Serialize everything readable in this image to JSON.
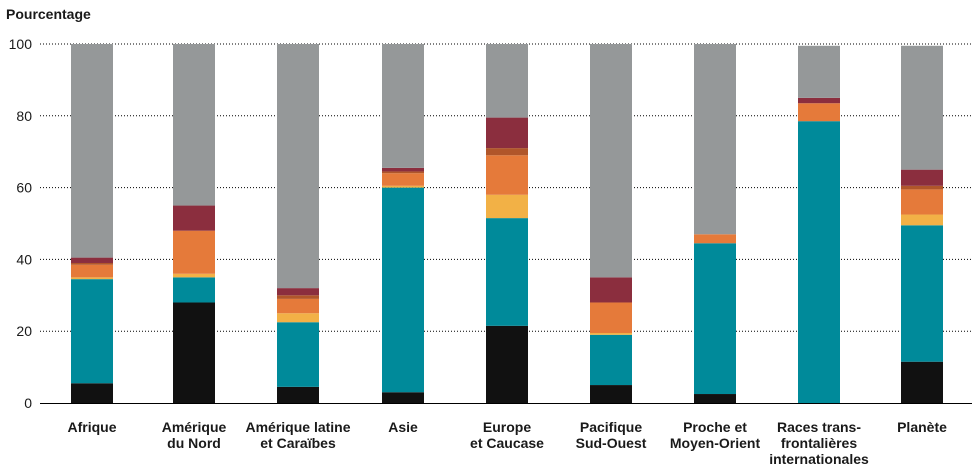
{
  "chart_data": {
    "type": "bar",
    "stacked": true,
    "ylabel": "Pourcentage",
    "ylim": [
      0,
      100
    ],
    "yticks": [
      "0",
      "20",
      "40",
      "60",
      "80",
      "100"
    ],
    "grid": true,
    "categories": [
      [
        "Afrique"
      ],
      [
        "Amérique",
        "du Nord"
      ],
      [
        "Amérique latine",
        "et Caraïbes"
      ],
      [
        "Asie"
      ],
      [
        "Europe",
        "et Caucase"
      ],
      [
        "Pacifique",
        "Sud-Ouest"
      ],
      [
        "Proche et",
        "Moyen-Orient"
      ],
      [
        "Races trans-",
        "frontalières",
        "internationales"
      ],
      [
        "Planète"
      ]
    ],
    "series": [
      {
        "color": "#111111",
        "values": [
          5.5,
          28,
          4.5,
          3,
          21.5,
          5,
          2.5,
          0,
          11.5
        ]
      },
      {
        "color": "#008a9a",
        "values": [
          29,
          7,
          18,
          57,
          30,
          14,
          42,
          78.5,
          38
        ]
      },
      {
        "color": "#f2b146",
        "values": [
          0.5,
          1,
          2.5,
          0.5,
          6.5,
          0.5,
          0,
          0,
          3
        ]
      },
      {
        "color": "#e57a3a",
        "values": [
          3.5,
          12,
          4,
          3.5,
          11,
          8.5,
          2.5,
          5,
          7
        ]
      },
      {
        "color": "#b0562a",
        "values": [
          0.5,
          0,
          1,
          0.5,
          2,
          0,
          0,
          0,
          1
        ]
      },
      {
        "color": "#8b2e3e",
        "values": [
          1.5,
          7,
          2,
          1,
          8.5,
          7,
          0,
          1.5,
          4.5
        ]
      },
      {
        "color": "#959899",
        "values": [
          59.5,
          45,
          68,
          34.5,
          20.5,
          65,
          53,
          14.5,
          34.5
        ]
      }
    ]
  }
}
